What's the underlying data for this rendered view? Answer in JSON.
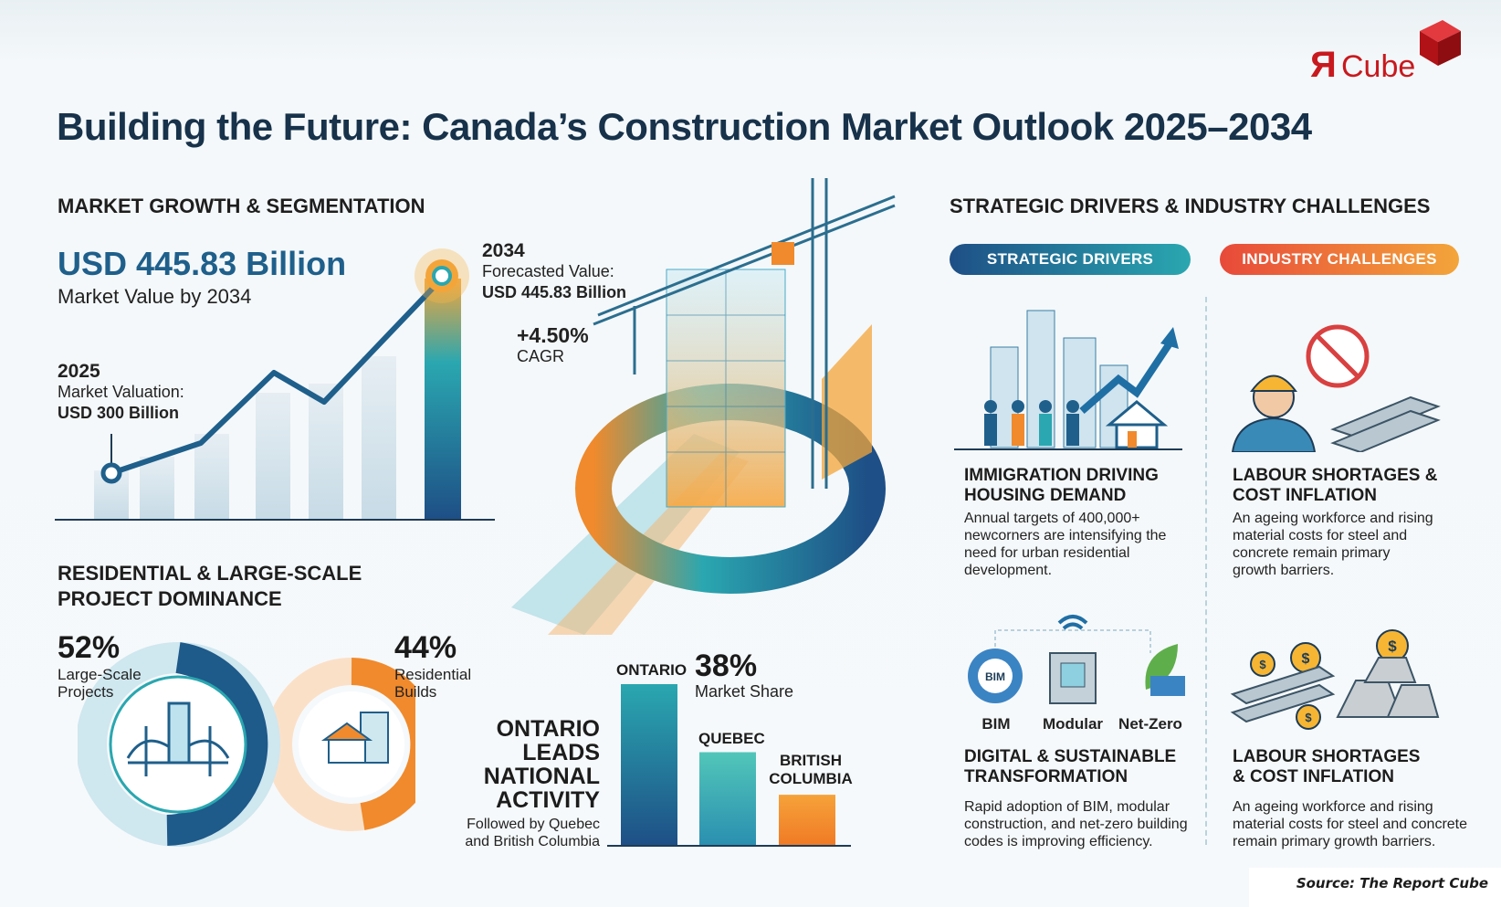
{
  "header": {
    "title": "Building the Future: Canada’s Construction Market Outlook 2025–2034",
    "logo_text": "ЯCube"
  },
  "left": {
    "section_title": "MARKET GROWTH & SEGMENTATION",
    "headline_value": "USD 445.83 Billion",
    "headline_caption": "Market Value by 2034",
    "start": {
      "year": "2025",
      "label": "Market Valuation:",
      "value": "USD 300 Billion"
    },
    "end": {
      "year": "2034",
      "label": "Forecasted Value:",
      "value": "USD 445.83 Billion"
    },
    "cagr": {
      "value": "+4.50%",
      "label": "CAGR"
    },
    "segment_title_1": "RESIDENTIAL & LARGE-SCALE",
    "segment_title_2": "PROJECT DOMINANCE",
    "large_scale": {
      "value": "52%",
      "label_1": "Large-Scale",
      "label_2": "Projects"
    },
    "residential": {
      "value": "44%",
      "label_1": "Residential",
      "label_2": "Builds"
    }
  },
  "regions": {
    "headline": [
      "ONTARIO",
      "LEADS",
      "NATIONAL",
      "ACTIVITY"
    ],
    "sub_1": "Followed by Quebec",
    "sub_2": "and British Columbia",
    "ontario_label": "ONTARIO",
    "ontario_value": "38%",
    "ontario_caption": "Market Share",
    "quebec_label": "QUEBEC",
    "bc_label_1": "BRITISH",
    "bc_label_2": "COLUMBIA"
  },
  "right": {
    "section_title": "STRATEGIC DRIVERS & INDUSTRY CHALLENGES",
    "drivers_pill": "STRATEGIC DRIVERS",
    "challenges_pill": "INDUSTRY CHALLENGES",
    "card1": {
      "title_1": "IMMIGRATION DRIVING",
      "title_2": "HOUSING DEMAND",
      "body": [
        "Annual targets of 400,000+",
        "newcorners are intensifying the",
        "need for urban residential",
        "development."
      ]
    },
    "card2": {
      "title_1": "LABOUR SHORTAGES &",
      "title_2": "COST INFLATION",
      "body": [
        "An ageing workforce and rising",
        "material costs for steel and",
        "concrete remain primary",
        "growth barriers."
      ]
    },
    "card3": {
      "icons": [
        "BIM",
        "Modular",
        "Net-Zero"
      ],
      "bim_badge": "BIM",
      "title_1": "DIGITAL & SUSTAINABLE",
      "title_2": "TRANSFORMATION",
      "body": [
        "Rapid adoption of BIM, modular",
        "construction, and net-zero building",
        "codes is improving efficiency."
      ]
    },
    "card4": {
      "title_1": "LABOUR SHORTAGES",
      "title_2": "& COST INFLATION",
      "body": [
        "An ageing workforce and rising",
        "material costs for steel and concrete",
        "remain primary growth barriers."
      ]
    }
  },
  "footer": {
    "source": "Source: The Report Cube"
  },
  "colors": {
    "title": "#17324a",
    "accent_blue": "#1f5f8b",
    "teal": "#2aa7b0",
    "orange": "#f08a2c",
    "red_logo": "#c8191e"
  },
  "chart_data": [
    {
      "type": "line",
      "x": [
        "2025",
        "2034"
      ],
      "values": [
        300,
        445.83
      ],
      "ylabel": "USD Billion"
    },
    {
      "type": "pie",
      "categories": [
        "Large-Scale Projects",
        "Residential Builds"
      ],
      "values": [
        52,
        44
      ]
    },
    {
      "type": "bar",
      "categories": [
        "ONTARIO",
        "QUEBEC",
        "BRITISH COLUMBIA"
      ],
      "values": [
        38,
        22,
        12
      ]
    }
  ]
}
